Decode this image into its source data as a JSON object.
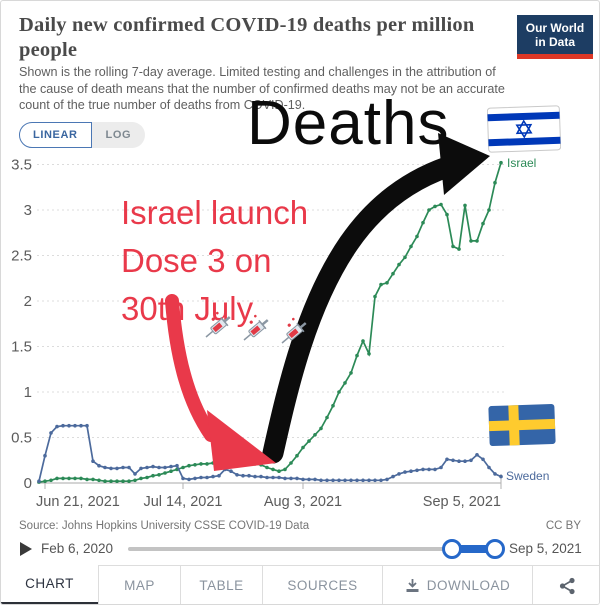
{
  "header": {
    "title": "Daily new confirmed COVID-19 deaths per million people",
    "subtitle": "Shown is the rolling 7-day average. Limited testing and challenges in the attribution of the cause of death means that the number of confirmed deaths may not be an accurate count of the true number of deaths from COVID-19.",
    "logo": {
      "line1": "Our World",
      "line2": "in Data"
    }
  },
  "controls": {
    "scale_options": [
      "LINEAR",
      "LOG"
    ],
    "selected_scale": "LINEAR"
  },
  "annotations": {
    "deaths_label": "Deaths",
    "dose_note_lines": [
      "Israel launch",
      "Dose 3 on",
      "30th July"
    ],
    "flags": [
      "israel-flag",
      "sweden-flag"
    ],
    "syringe_icon_count": 3,
    "annotation_red": "#e9394a",
    "arrow_black": "#0c0c0c"
  },
  "chart_data": {
    "type": "line",
    "title": "Daily new confirmed COVID-19 deaths per million people",
    "x_unit": "day",
    "x_start_date": "Jun 20, 2021",
    "x_end_date": "Sep 5, 2021",
    "x_ticks": [
      {
        "label": "Jun 21, 2021",
        "day": 1,
        "align": "start"
      },
      {
        "label": "Jul 14, 2021",
        "day": 24,
        "align": "middle"
      },
      {
        "label": "Aug 3, 2021",
        "day": 44,
        "align": "middle"
      },
      {
        "label": "Sep 5, 2021",
        "day": 77,
        "align": "end"
      }
    ],
    "y_ticks": [
      0,
      0.5,
      1,
      1.5,
      2,
      2.5,
      3,
      3.5
    ],
    "ylim": [
      0,
      3.5
    ],
    "grid": true,
    "legend_position": "end-of-line",
    "series": [
      {
        "name": "Israel",
        "color": "#2c8a57",
        "values": [
          0.01,
          0.02,
          0.03,
          0.05,
          0.05,
          0.05,
          0.05,
          0.05,
          0.04,
          0.04,
          0.03,
          0.02,
          0.02,
          0.02,
          0.02,
          0.02,
          0.03,
          0.05,
          0.06,
          0.08,
          0.09,
          0.11,
          0.13,
          0.15,
          0.17,
          0.19,
          0.2,
          0.21,
          0.21,
          0.22,
          0.21,
          0.21,
          0.22,
          0.23,
          0.24,
          0.23,
          0.21,
          0.2,
          0.17,
          0.15,
          0.13,
          0.15,
          0.22,
          0.3,
          0.39,
          0.46,
          0.53,
          0.6,
          0.72,
          0.85,
          1.0,
          1.1,
          1.21,
          1.4,
          1.56,
          1.42,
          2.05,
          2.18,
          2.2,
          2.3,
          2.4,
          2.48,
          2.6,
          2.71,
          2.86,
          3.0,
          3.04,
          3.06,
          2.95,
          2.6,
          2.57,
          3.05,
          2.66,
          2.66,
          2.85,
          3.0,
          3.3,
          3.52
        ]
      },
      {
        "name": "Sweden",
        "color": "#4c6a9c",
        "values": [
          0.02,
          0.3,
          0.55,
          0.62,
          0.63,
          0.63,
          0.63,
          0.63,
          0.63,
          0.24,
          0.19,
          0.17,
          0.16,
          0.16,
          0.17,
          0.17,
          0.1,
          0.16,
          0.17,
          0.18,
          0.17,
          0.17,
          0.18,
          0.19,
          0.05,
          0.04,
          0.05,
          0.06,
          0.06,
          0.07,
          0.08,
          0.15,
          0.13,
          0.09,
          0.08,
          0.08,
          0.07,
          0.07,
          0.06,
          0.06,
          0.06,
          0.05,
          0.05,
          0.05,
          0.04,
          0.04,
          0.04,
          0.03,
          0.03,
          0.03,
          0.03,
          0.03,
          0.03,
          0.03,
          0.03,
          0.03,
          0.03,
          0.03,
          0.04,
          0.07,
          0.1,
          0.12,
          0.13,
          0.14,
          0.15,
          0.15,
          0.15,
          0.17,
          0.26,
          0.25,
          0.24,
          0.24,
          0.25,
          0.31,
          0.26,
          0.17,
          0.1,
          0.07
        ]
      }
    ]
  },
  "footer": {
    "source": "Source: Johns Hopkins University CSSE COVID-19 Data",
    "license": "CC BY"
  },
  "timeline": {
    "start": "Feb 6, 2020",
    "end": "Sep 5, 2021",
    "accent_color": "#2668c9"
  },
  "tabs": [
    {
      "label": "CHART",
      "active": true
    },
    {
      "label": "MAP",
      "active": false
    },
    {
      "label": "TABLE",
      "active": false
    },
    {
      "label": "SOURCES",
      "active": false
    },
    {
      "label": "DOWNLOAD",
      "active": false,
      "icon": "download-icon"
    }
  ],
  "share": {
    "icon": "share-icon"
  },
  "brand": {
    "logo_navy": "#1d3d63",
    "logo_red": "#dd3726"
  }
}
